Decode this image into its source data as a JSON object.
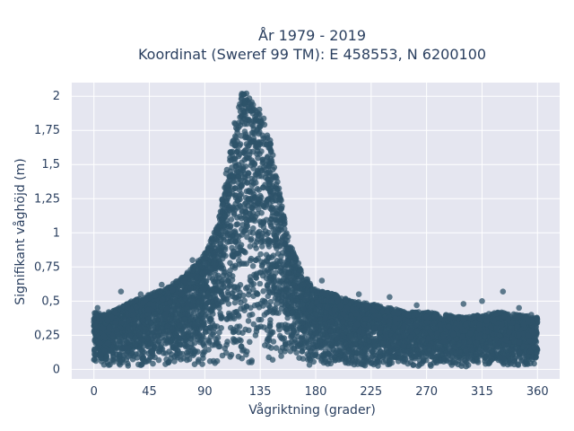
{
  "chart_data": {
    "type": "scatter",
    "title_lines": [
      "År 1979 - 2019",
      "Koordinat (Sweref 99 TM): E 458553, N 6200100"
    ],
    "xlabel": "Vågriktning (grader)",
    "ylabel": "Signifikant våghöjd (m)",
    "xlim": [
      -18,
      378
    ],
    "ylim": [
      -0.07,
      2.1
    ],
    "x_ticks": [
      0,
      45,
      90,
      135,
      180,
      225,
      270,
      315,
      360
    ],
    "x_tick_labels": [
      "0",
      "45",
      "90",
      "135",
      "180",
      "225",
      "270",
      "315",
      "360"
    ],
    "y_ticks": [
      0,
      0.25,
      0.5,
      0.75,
      1,
      1.25,
      1.5,
      1.75,
      2
    ],
    "y_tick_labels": [
      "0",
      "0,25",
      "0,5",
      "0,75",
      "1",
      "1,25",
      "1,5",
      "1,75",
      "2"
    ],
    "grid": true,
    "marker_color": "#2e5369",
    "plot_background": "#e5e6f0",
    "series": [
      {
        "name": "",
        "envelope": {
          "x": [
            0,
            10,
            20,
            30,
            45,
            60,
            75,
            90,
            100,
            105,
            110,
            115,
            120,
            125,
            130,
            135,
            140,
            145,
            150,
            155,
            160,
            170,
            180,
            195,
            210,
            225,
            240,
            255,
            270,
            285,
            300,
            315,
            330,
            345,
            360
          ],
          "y_max": [
            0.42,
            0.4,
            0.45,
            0.5,
            0.55,
            0.6,
            0.7,
            0.85,
            1.05,
            1.3,
            1.6,
            1.85,
            2.03,
            2.02,
            1.95,
            1.9,
            1.8,
            1.6,
            1.35,
            1.1,
            0.9,
            0.7,
            0.58,
            0.55,
            0.5,
            0.48,
            0.45,
            0.42,
            0.42,
            0.4,
            0.38,
            0.4,
            0.42,
            0.4,
            0.38
          ],
          "y_min": [
            0.03,
            0.02,
            0.02,
            0.02,
            0.02,
            0.02,
            0.02,
            0.02,
            0.02,
            0.02,
            0.02,
            0.02,
            0.02,
            0.02,
            0.02,
            0.02,
            0.02,
            0.02,
            0.02,
            0.02,
            0.02,
            0.02,
            0.02,
            0.02,
            0.02,
            0.02,
            0.02,
            0.02,
            0.02,
            0.02,
            0.02,
            0.02,
            0.02,
            0.02,
            0.03
          ]
        },
        "outliers": [
          {
            "x": 3,
            "y": 0.45
          },
          {
            "x": 12,
            "y": 0.42
          },
          {
            "x": 22,
            "y": 0.57
          },
          {
            "x": 38,
            "y": 0.55
          },
          {
            "x": 55,
            "y": 0.62
          },
          {
            "x": 80,
            "y": 0.8
          },
          {
            "x": 185,
            "y": 0.65
          },
          {
            "x": 215,
            "y": 0.55
          },
          {
            "x": 240,
            "y": 0.53
          },
          {
            "x": 262,
            "y": 0.47
          },
          {
            "x": 300,
            "y": 0.48
          },
          {
            "x": 315,
            "y": 0.5
          },
          {
            "x": 332,
            "y": 0.57
          },
          {
            "x": 345,
            "y": 0.45
          },
          {
            "x": 355,
            "y": 0.4
          }
        ]
      }
    ]
  }
}
